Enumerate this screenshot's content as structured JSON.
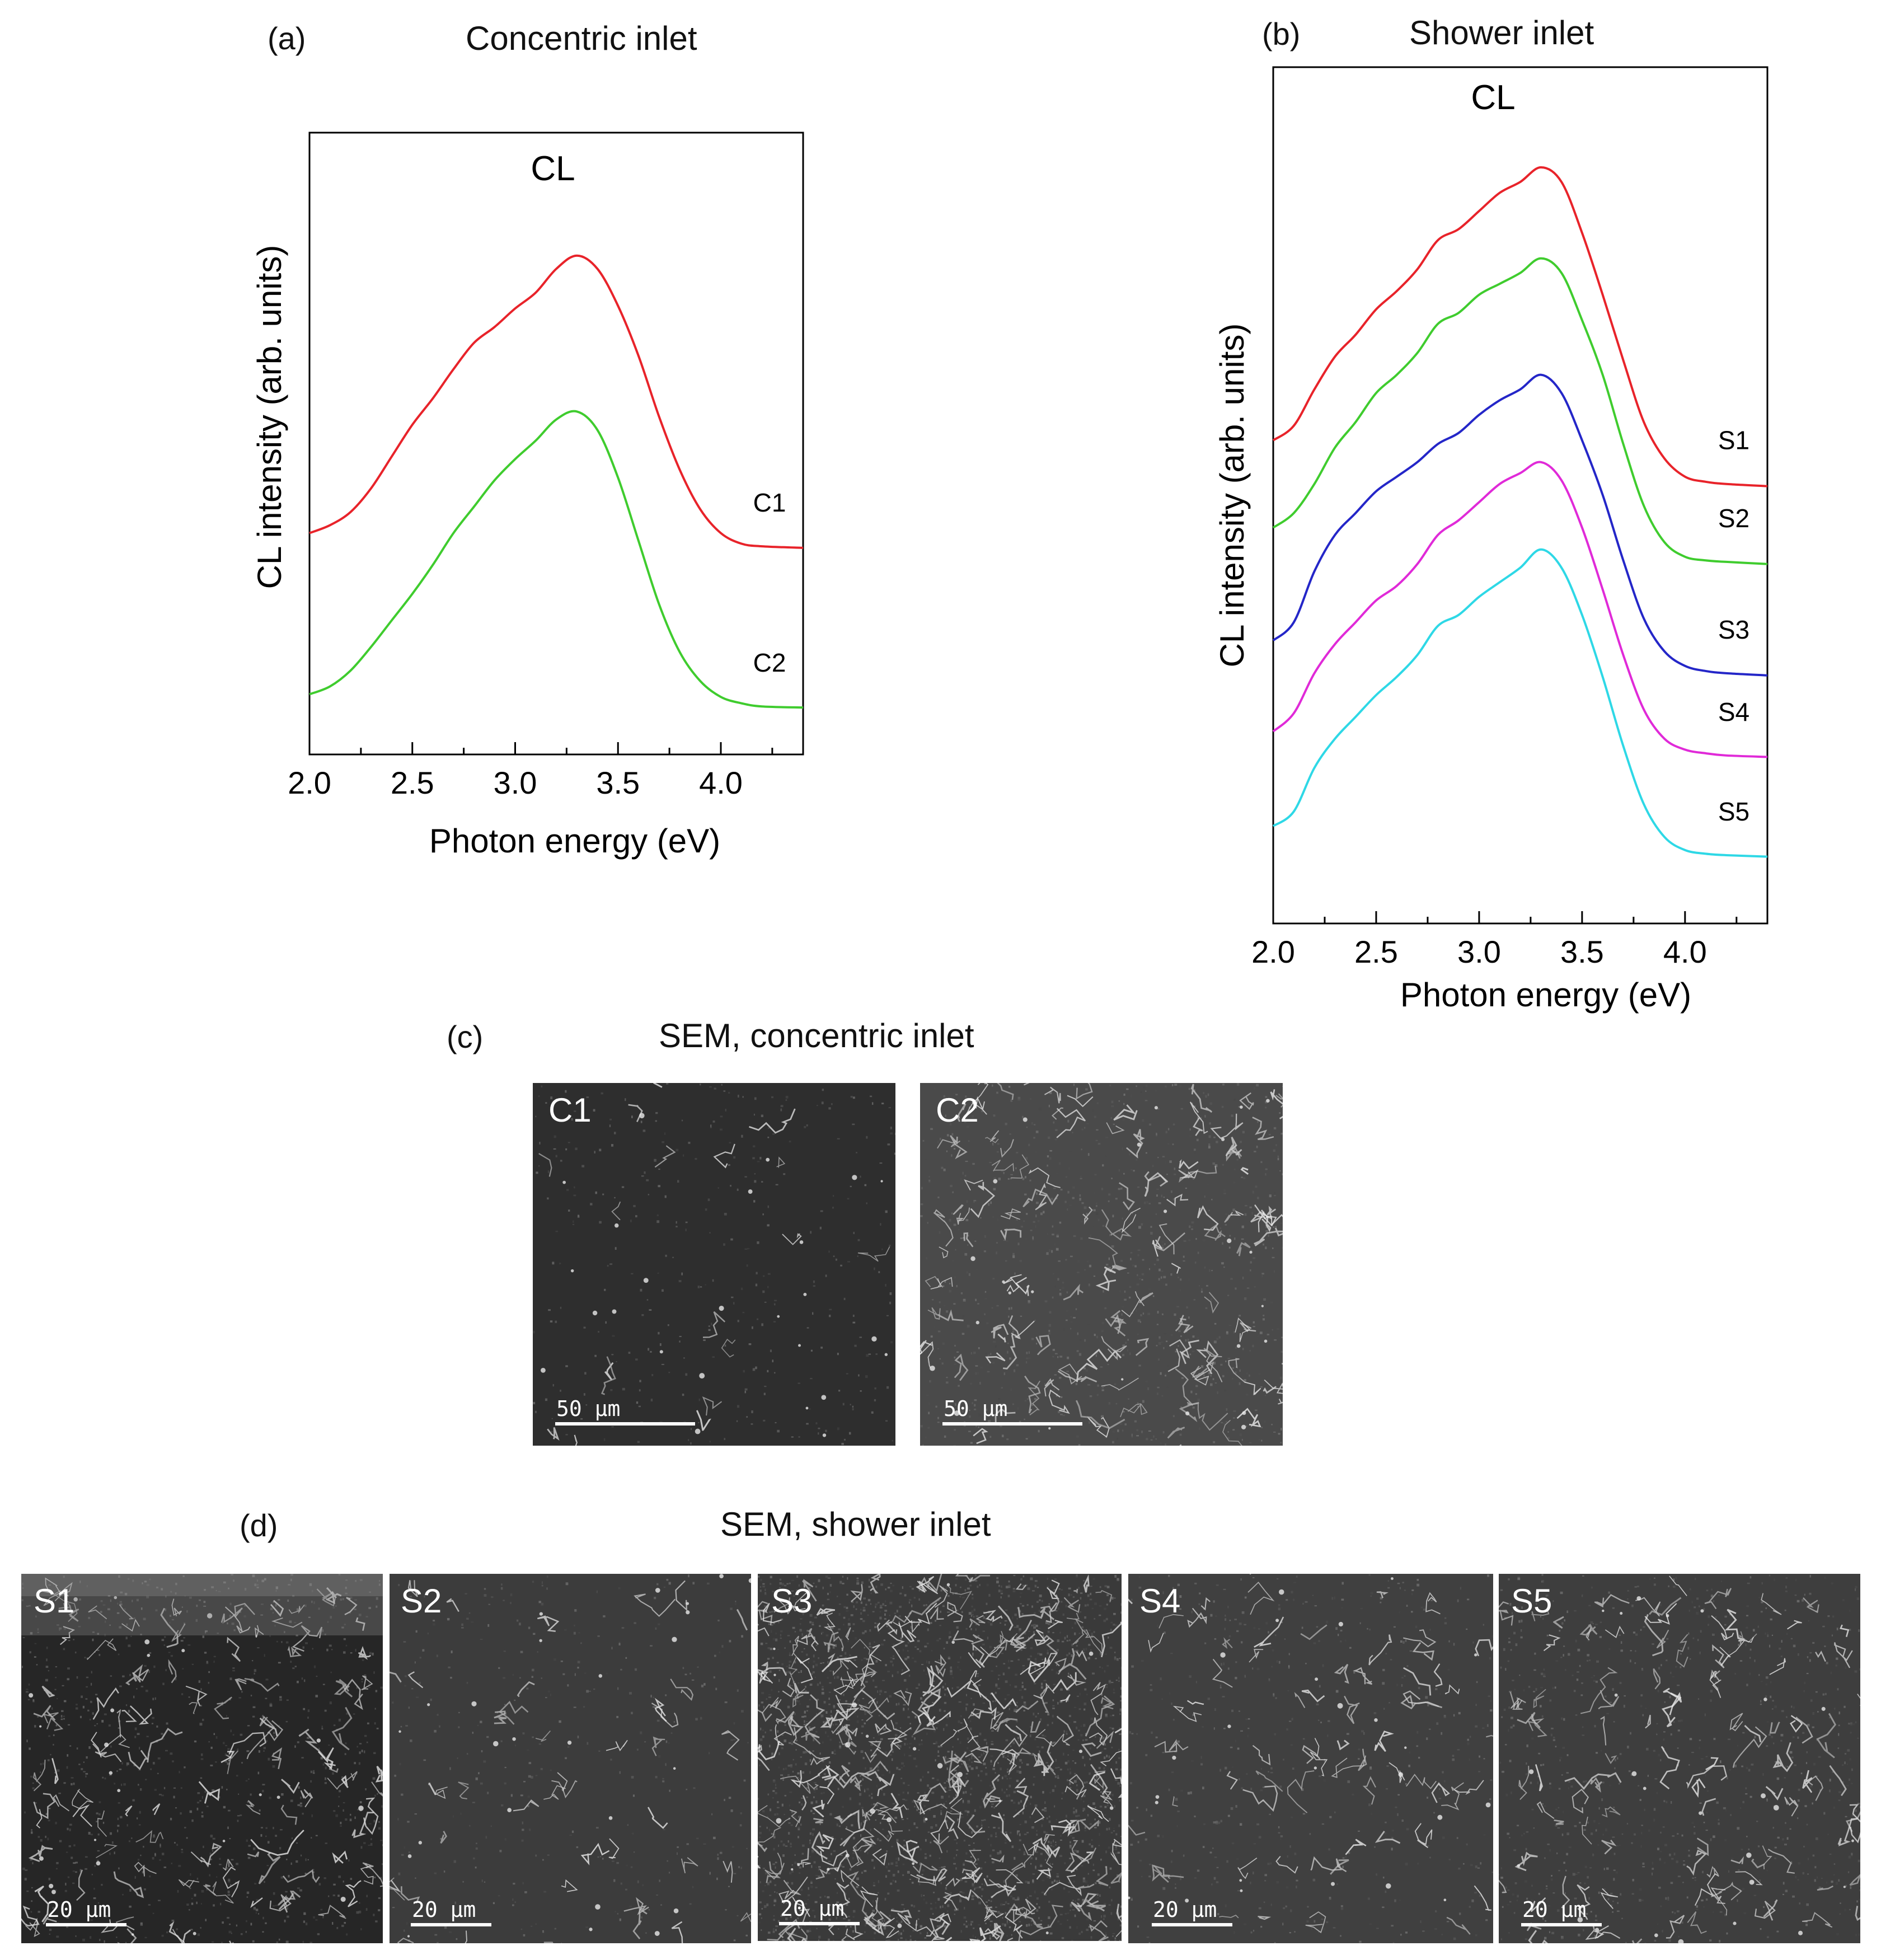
{
  "colors": {
    "red": "#e8232a",
    "green": "#3fcc2e",
    "blue": "#2426c8",
    "magenta": "#e02ad8",
    "cyan": "#2ed8e6",
    "axis": "#000000"
  },
  "chart_data": [
    {
      "type": "line",
      "panel": "(a)",
      "title": "Concentric inlet",
      "inner_label": "CL",
      "xlabel": "Photon energy (eV)",
      "ylabel": "CL intensity (arb. units)",
      "xlim": [
        2.0,
        4.4
      ],
      "ylim": [
        0,
        10
      ],
      "xticks": [
        2.0,
        2.5,
        3.0,
        3.5,
        4.0
      ],
      "xtick_labels": [
        "2.0",
        "2.5",
        "3.0",
        "3.5",
        "4.0"
      ],
      "x": [
        2.0,
        2.1,
        2.2,
        2.3,
        2.4,
        2.5,
        2.6,
        2.7,
        2.8,
        2.9,
        3.0,
        3.1,
        3.2,
        3.3,
        3.4,
        3.5,
        3.6,
        3.7,
        3.8,
        3.9,
        4.0,
        4.1,
        4.2,
        4.4
      ],
      "series": [
        {
          "name": "C1",
          "color_key": "red",
          "values": [
            3.6,
            3.75,
            4.0,
            4.45,
            5.05,
            5.65,
            6.15,
            6.7,
            7.2,
            7.5,
            7.85,
            8.15,
            8.6,
            8.85,
            8.6,
            7.9,
            6.95,
            5.8,
            4.8,
            4.05,
            3.6,
            3.4,
            3.35,
            3.32
          ]
        },
        {
          "name": "C2",
          "color_key": "green",
          "values": [
            0.55,
            0.7,
            1.0,
            1.45,
            1.95,
            2.45,
            3.0,
            3.6,
            4.1,
            4.6,
            5.0,
            5.35,
            5.75,
            5.9,
            5.55,
            4.65,
            3.45,
            2.25,
            1.35,
            0.8,
            0.5,
            0.38,
            0.32,
            0.3
          ]
        }
      ]
    },
    {
      "type": "line",
      "panel": "(b)",
      "title": "Shower inlet",
      "inner_label": "CL",
      "xlabel": "Photon energy (eV)",
      "ylabel": "CL intensity (arb. units)",
      "xlim": [
        2.0,
        4.4
      ],
      "ylim": [
        0,
        10
      ],
      "xticks": [
        2.0,
        2.5,
        3.0,
        3.5,
        4.0
      ],
      "xtick_labels": [
        "2.0",
        "2.5",
        "3.0",
        "3.5",
        "4.0"
      ],
      "x": [
        2.0,
        2.1,
        2.2,
        2.3,
        2.4,
        2.5,
        2.6,
        2.7,
        2.8,
        2.9,
        3.0,
        3.1,
        3.2,
        3.3,
        3.4,
        3.5,
        3.6,
        3.7,
        3.8,
        3.9,
        4.0,
        4.1,
        4.2,
        4.4
      ],
      "series": [
        {
          "name": "S1",
          "color_key": "red",
          "values": [
            6.05,
            6.25,
            6.75,
            7.2,
            7.5,
            7.85,
            8.1,
            8.4,
            8.8,
            8.95,
            9.2,
            9.45,
            9.6,
            9.8,
            9.6,
            8.9,
            8.05,
            7.15,
            6.3,
            5.8,
            5.55,
            5.48,
            5.45,
            5.42
          ]
        },
        {
          "name": "S2",
          "color_key": "green",
          "values": [
            4.85,
            5.05,
            5.45,
            5.95,
            6.3,
            6.7,
            6.95,
            7.25,
            7.65,
            7.8,
            8.05,
            8.2,
            8.35,
            8.55,
            8.35,
            7.7,
            6.95,
            6.0,
            5.15,
            4.65,
            4.45,
            4.4,
            4.38,
            4.35
          ]
        },
        {
          "name": "S3",
          "color_key": "blue",
          "values": [
            3.3,
            3.55,
            4.25,
            4.75,
            5.05,
            5.35,
            5.55,
            5.75,
            6.0,
            6.15,
            6.4,
            6.6,
            6.75,
            6.95,
            6.7,
            6.05,
            5.3,
            4.4,
            3.6,
            3.15,
            2.95,
            2.88,
            2.85,
            2.82
          ]
        },
        {
          "name": "S4",
          "color_key": "magenta",
          "values": [
            2.05,
            2.3,
            2.85,
            3.25,
            3.55,
            3.85,
            4.05,
            4.35,
            4.75,
            4.95,
            5.2,
            5.45,
            5.6,
            5.75,
            5.5,
            4.85,
            4.0,
            3.1,
            2.35,
            1.95,
            1.8,
            1.75,
            1.72,
            1.7
          ]
        },
        {
          "name": "S5",
          "color_key": "cyan",
          "values": [
            0.75,
            0.95,
            1.55,
            1.95,
            2.25,
            2.55,
            2.8,
            3.1,
            3.5,
            3.65,
            3.9,
            4.1,
            4.3,
            4.55,
            4.3,
            3.65,
            2.8,
            1.85,
            1.05,
            0.6,
            0.42,
            0.37,
            0.35,
            0.33
          ]
        }
      ]
    }
  ],
  "panel_c": {
    "letter": "(c)",
    "title": "SEM, concentric inlet",
    "images": [
      {
        "label": "C1",
        "scale": "50  µm"
      },
      {
        "label": "C2",
        "scale": "50  µm"
      }
    ]
  },
  "panel_d": {
    "letter": "(d)",
    "title": "SEM, shower inlet",
    "images": [
      {
        "label": "S1",
        "scale": "20  µm"
      },
      {
        "label": "S2",
        "scale": "20  µm"
      },
      {
        "label": "S3",
        "scale": "20  µm"
      },
      {
        "label": "S4",
        "scale": "20  µm"
      },
      {
        "label": "S5",
        "scale": "20  µm"
      }
    ]
  }
}
